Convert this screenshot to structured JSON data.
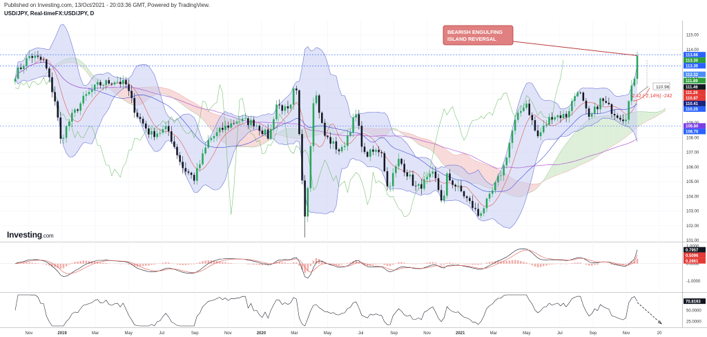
{
  "header": {
    "published": "Published on Investing.com, 13/Oct/2021 - 20:03:36 GMT, Powered by TradingView.",
    "symbol": "USD/JPY, Real-timeFX:USD/JPY, D"
  },
  "logo": {
    "main": "Investing",
    "suffix": ".com"
  },
  "chart_data": [
    {
      "type": "candlestick",
      "panel": "price",
      "x_ticks": [
        "Nov",
        "2019",
        "Mar",
        "May",
        "Jul",
        "Sep",
        "Nov",
        "2020",
        "Mar",
        "May",
        "Jul",
        "Sep",
        "Nov",
        "2021",
        "Mar",
        "May",
        "Jul",
        "Sep",
        "Nov",
        "20"
      ],
      "y_ticks": [
        "115.00",
        "114.00",
        "113.00",
        "112.00",
        "111.00",
        "110.00",
        "109.00",
        "108.00",
        "107.00",
        "106.00",
        "105.00",
        "104.00",
        "103.00",
        "102.00",
        "101.00"
      ],
      "ylim": [
        101,
        115.6
      ],
      "price_path": [
        [
          "2018-10-15",
          112.3
        ],
        [
          "2018-11-10",
          113.6
        ],
        [
          "2018-12-05",
          113.2
        ],
        [
          "2018-12-25",
          110.4
        ],
        [
          "2019-01-03",
          107.8
        ],
        [
          "2019-01-20",
          109.3
        ],
        [
          "2019-02-15",
          110.8
        ],
        [
          "2019-03-10",
          111.6
        ],
        [
          "2019-04-10",
          111.9
        ],
        [
          "2019-04-28",
          111.6
        ],
        [
          "2019-05-15",
          109.7
        ],
        [
          "2019-06-10",
          108.2
        ],
        [
          "2019-07-10",
          108.6
        ],
        [
          "2019-08-05",
          106.0
        ],
        [
          "2019-08-26",
          105.2
        ],
        [
          "2019-09-20",
          107.8
        ],
        [
          "2019-10-15",
          108.6
        ],
        [
          "2019-11-10",
          109.2
        ],
        [
          "2019-12-10",
          109.0
        ],
        [
          "2020-01-05",
          108.0
        ],
        [
          "2020-01-17",
          110.3
        ],
        [
          "2020-02-10",
          109.7
        ],
        [
          "2020-02-20",
          111.9
        ],
        [
          "2020-03-06",
          103.2
        ],
        [
          "2020-03-09",
          102.6
        ],
        [
          "2020-03-24",
          111.5
        ],
        [
          "2020-04-10",
          108.2
        ],
        [
          "2020-05-10",
          107.0
        ],
        [
          "2020-06-05",
          109.6
        ],
        [
          "2020-06-20",
          106.8
        ],
        [
          "2020-07-20",
          107.2
        ],
        [
          "2020-07-31",
          104.5
        ],
        [
          "2020-08-20",
          106.5
        ],
        [
          "2020-09-20",
          104.5
        ],
        [
          "2020-10-20",
          105.5
        ],
        [
          "2020-11-06",
          103.4
        ],
        [
          "2020-11-11",
          105.4
        ],
        [
          "2020-12-10",
          104.2
        ],
        [
          "2020-12-31",
          103.1
        ],
        [
          "2021-01-06",
          102.7
        ],
        [
          "2021-01-25",
          103.8
        ],
        [
          "2021-02-20",
          106.0
        ],
        [
          "2021-03-10",
          108.9
        ],
        [
          "2021-03-31",
          110.5
        ],
        [
          "2021-04-20",
          108.0
        ],
        [
          "2021-05-15",
          109.5
        ],
        [
          "2021-06-10",
          109.5
        ],
        [
          "2021-07-01",
          111.4
        ],
        [
          "2021-07-20",
          109.2
        ],
        [
          "2021-08-10",
          110.6
        ],
        [
          "2021-08-31",
          109.8
        ],
        [
          "2021-09-15",
          109.4
        ],
        [
          "2021-09-22",
          109.3
        ],
        [
          "2021-10-01",
          111.0
        ],
        [
          "2021-10-07",
          111.9
        ],
        [
          "2021-10-13",
          113.6
        ]
      ],
      "price_labels": [
        {
          "value": 113.66,
          "label": "113.66",
          "color": "#2962ff"
        },
        {
          "value": 113.3,
          "label": "113.30",
          "color": "#2e9f3a"
        },
        {
          "value": 113.3,
          "label": "113.30",
          "color": "#2962ff"
        },
        {
          "value": 112.32,
          "label": "112.32",
          "color": "#4c8df6"
        },
        {
          "value": 111.89,
          "label": "111.89",
          "color": "#2e9f3a"
        },
        {
          "value": 111.46,
          "label": "111.46",
          "color": "#131722"
        },
        {
          "value": 111.26,
          "label": "111.26",
          "color": "#e53935"
        },
        {
          "value": 110.87,
          "label": "110.87",
          "color": "#e53935"
        },
        {
          "value": 110.41,
          "label": "110.41",
          "color": "#1a237e"
        },
        {
          "value": 110.25,
          "label": "110.25",
          "color": "#2962ff"
        },
        {
          "value": 108.8,
          "label": "108.80",
          "color": "#7b3fe4"
        },
        {
          "value": 108.7,
          "label": "108.70",
          "color": "#2962ff"
        }
      ],
      "horizontal_lines": [
        113.66,
        112.89,
        108.8
      ],
      "annotations": {
        "callout": "BEARISH ENGULFING ISLAND REVERSAL",
        "box_value": "110.96",
        "measure": "-2.42 (-2.14%) -242"
      }
    },
    {
      "type": "line",
      "panel": "macd",
      "y_ticks": [
        "1.0000",
        "0.0000",
        "-1.0000"
      ],
      "ylim": [
        -1.55,
        1.1
      ],
      "labels": [
        {
          "value": 0.7957,
          "label": "0.7957",
          "color": "#131722"
        },
        {
          "value": 0.5096,
          "label": "0.5096",
          "color": "#e53935"
        },
        {
          "value": 0.2861,
          "label": "0.2861",
          "color": "#e53935"
        }
      ]
    },
    {
      "type": "line",
      "panel": "rsi",
      "y_ticks": [
        "50.0000",
        "25.0000"
      ],
      "ylim": [
        15,
        85
      ],
      "labels": [
        {
          "value": 70.8193,
          "label": "70.8193",
          "color": "#131722"
        }
      ]
    }
  ]
}
